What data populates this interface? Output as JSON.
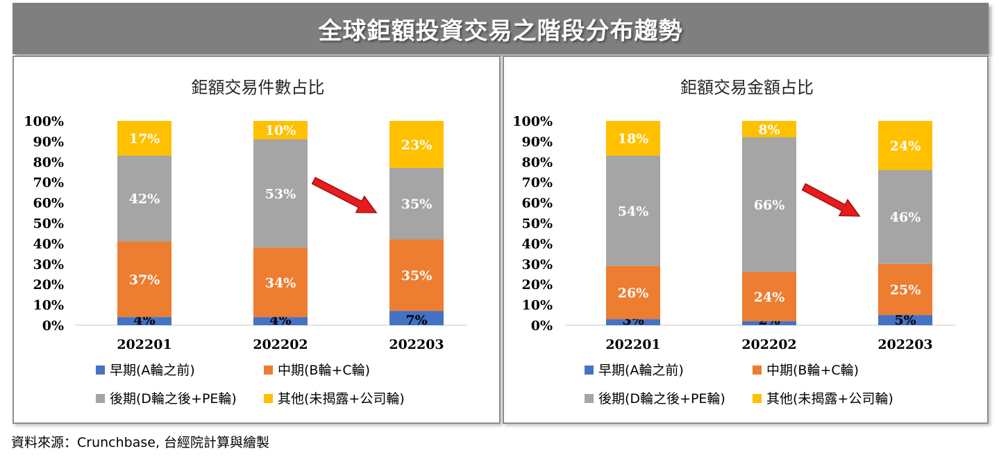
{
  "header": {
    "title": "全球鉅額投資交易之階段分布趨勢"
  },
  "source": "資料來源：Crunchbase, 台經院計算與繪製",
  "colors": {
    "early": "#4472c4",
    "mid": "#ed7d31",
    "late": "#a5a5a5",
    "other": "#ffc000",
    "arrow": "#e81c1c"
  },
  "chart_data": [
    {
      "type": "bar",
      "stacked": true,
      "title": "鉅額交易件數占比",
      "categories": [
        "202201",
        "202202",
        "202203"
      ],
      "y_ticks": [
        "0%",
        "10%",
        "20%",
        "30%",
        "40%",
        "50%",
        "60%",
        "70%",
        "80%",
        "90%",
        "100%"
      ],
      "ylim": [
        0,
        100
      ],
      "legend_position": "bottom",
      "series": [
        {
          "name": "早期(A輪之前)",
          "key": "early",
          "values": [
            4,
            4,
            7
          ],
          "labels": [
            "4%",
            "4%",
            "7%"
          ]
        },
        {
          "name": "中期(B輪+C輪)",
          "key": "mid",
          "values": [
            37,
            34,
            35
          ],
          "labels": [
            "37%",
            "34%",
            "35%"
          ]
        },
        {
          "name": "後期(D輪之後+PE輪)",
          "key": "late",
          "values": [
            42,
            53,
            35
          ],
          "labels": [
            "42%",
            "53%",
            "35%"
          ]
        },
        {
          "name": "其他(未揭露+公司輪)",
          "key": "other",
          "values": [
            17,
            10,
            23
          ],
          "labels": [
            "17%",
            "10%",
            "23%"
          ]
        }
      ],
      "annotation": "red arrow pointing down-right toward 202203 late-stage segment"
    },
    {
      "type": "bar",
      "stacked": true,
      "title": "鉅額交易金額占比",
      "categories": [
        "202201",
        "202202",
        "202203"
      ],
      "y_ticks": [
        "0%",
        "10%",
        "20%",
        "30%",
        "40%",
        "50%",
        "60%",
        "70%",
        "80%",
        "90%",
        "100%"
      ],
      "ylim": [
        0,
        100
      ],
      "legend_position": "bottom",
      "series": [
        {
          "name": "早期(A輪之前)",
          "key": "early",
          "values": [
            3,
            2,
            5
          ],
          "labels": [
            "3%",
            "2%",
            "5%"
          ]
        },
        {
          "name": "中期(B輪+C輪)",
          "key": "mid",
          "values": [
            26,
            24,
            25
          ],
          "labels": [
            "26%",
            "24%",
            "25%"
          ]
        },
        {
          "name": "後期(D輪之後+PE輪)",
          "key": "late",
          "values": [
            54,
            66,
            46
          ],
          "labels": [
            "54%",
            "66%",
            "46%"
          ]
        },
        {
          "name": "其他(未揭露+公司輪)",
          "key": "other",
          "values": [
            18,
            8,
            24
          ],
          "labels": [
            "18%",
            "8%",
            "24%"
          ]
        }
      ],
      "annotation": "red arrow pointing down-right toward 202203 late-stage segment"
    }
  ]
}
